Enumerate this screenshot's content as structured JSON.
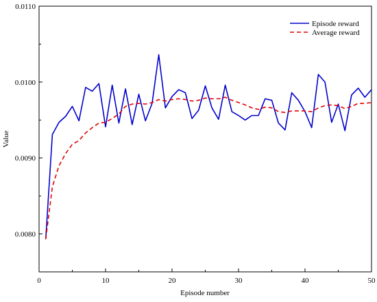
{
  "chart_data": {
    "type": "line",
    "title": "",
    "xlabel": "Episode number",
    "ylabel": "Value",
    "xlim": [
      0,
      50
    ],
    "ylim": [
      0.0075,
      0.011
    ],
    "x_ticks": [
      0,
      10,
      20,
      30,
      40,
      50
    ],
    "x_tick_labels": [
      "0",
      "10",
      "20",
      "30",
      "40",
      "50"
    ],
    "y_ticks": [
      0.008,
      0.009,
      0.01,
      0.011
    ],
    "y_tick_labels": [
      "0.0080",
      "0.0090",
      "0.0100",
      "0.0110"
    ],
    "grid": false,
    "legend_position": "top-right",
    "x": [
      1,
      2,
      3,
      4,
      5,
      6,
      7,
      8,
      9,
      10,
      11,
      12,
      13,
      14,
      15,
      16,
      17,
      18,
      19,
      20,
      21,
      22,
      23,
      24,
      25,
      26,
      27,
      28,
      29,
      30,
      31,
      32,
      33,
      34,
      35,
      36,
      37,
      38,
      39,
      40,
      41,
      42,
      43,
      44,
      45,
      46,
      47,
      48,
      49,
      50
    ],
    "series": [
      {
        "name": "Episode reward",
        "color": "#0000cc",
        "style": "solid",
        "values": [
          0.00793,
          0.00931,
          0.00947,
          0.00955,
          0.00968,
          0.00949,
          0.00993,
          0.00988,
          0.00998,
          0.00941,
          0.00996,
          0.00946,
          0.00991,
          0.00944,
          0.00984,
          0.00949,
          0.00972,
          0.01036,
          0.00966,
          0.00981,
          0.0099,
          0.00986,
          0.00952,
          0.00963,
          0.00995,
          0.00966,
          0.00951,
          0.00996,
          0.00961,
          0.00956,
          0.0095,
          0.00956,
          0.00956,
          0.00978,
          0.00976,
          0.00946,
          0.00937,
          0.00986,
          0.00976,
          0.00961,
          0.0094,
          0.0101,
          0.01,
          0.00947,
          0.00971,
          0.00936,
          0.00983,
          0.00992,
          0.0098,
          0.0099
        ]
      },
      {
        "name": "Average reward",
        "color": "#e00000",
        "style": "dashed",
        "values": [
          0.00793,
          0.00862,
          0.0089,
          0.00906,
          0.00918,
          0.00923,
          0.00933,
          0.0094,
          0.00946,
          0.00947,
          0.00952,
          0.00958,
          0.00968,
          0.00971,
          0.00972,
          0.00971,
          0.00973,
          0.00977,
          0.00975,
          0.00977,
          0.00978,
          0.00977,
          0.00975,
          0.00976,
          0.00979,
          0.00978,
          0.00978,
          0.0098,
          0.00976,
          0.00973,
          0.0097,
          0.00966,
          0.00964,
          0.00967,
          0.00966,
          0.00961,
          0.0096,
          0.00962,
          0.00962,
          0.00962,
          0.00961,
          0.00966,
          0.00969,
          0.0097,
          0.00969,
          0.00965,
          0.00968,
          0.00972,
          0.00972,
          0.00973
        ]
      }
    ]
  }
}
